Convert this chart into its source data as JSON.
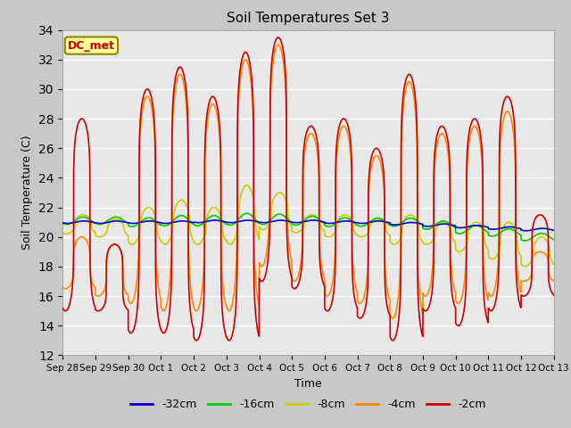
{
  "title": "Soil Temperatures Set 3",
  "xlabel": "Time",
  "ylabel": "Soil Temperature (C)",
  "ylim": [
    12,
    34
  ],
  "yticks": [
    12,
    14,
    16,
    18,
    20,
    22,
    24,
    26,
    28,
    30,
    32,
    34
  ],
  "fig_bg_color": "#c8c8c8",
  "plot_bg_color": "#e8e8e8",
  "annotation_text": "DC_met",
  "annotation_box_color": "#ffff99",
  "annotation_border_color": "#888800",
  "annotation_text_color": "#cc0000",
  "series_colors": {
    "-32cm": "#0000cc",
    "-16cm": "#00cc00",
    "-8cm": "#cccc00",
    "-4cm": "#ff8800",
    "-2cm": "#cc0000"
  },
  "legend_labels": [
    "-32cm",
    "-16cm",
    "-8cm",
    "-4cm",
    "-2cm"
  ],
  "x_tick_labels": [
    "Sep 28",
    "Sep 29",
    "Sep 30",
    "Oct 1",
    "Oct 2",
    "Oct 3",
    "Oct 4",
    "Oct 5",
    "Oct 6",
    "Oct 7",
    "Oct 8",
    "Oct 9",
    "Oct 10",
    "Oct 11",
    "Oct 12",
    "Oct 13"
  ],
  "x_tick_positions": [
    0,
    1,
    2,
    3,
    4,
    5,
    6,
    7,
    8,
    9,
    10,
    11,
    12,
    13,
    14,
    15
  ],
  "peaks_2cm": [
    28.0,
    19.5,
    30.0,
    31.5,
    29.5,
    32.5,
    33.5,
    27.5,
    28.0,
    26.0,
    31.0,
    27.5,
    28.0,
    29.5,
    21.5
  ],
  "troughs_2cm": [
    15.0,
    15.0,
    13.5,
    13.5,
    13.0,
    13.0,
    17.0,
    16.5,
    15.0,
    14.5,
    13.0,
    15.0,
    14.0,
    15.0,
    16.0
  ],
  "peaks_4cm": [
    20.0,
    19.5,
    29.5,
    31.0,
    29.0,
    32.0,
    33.0,
    27.0,
    27.5,
    25.5,
    30.5,
    27.0,
    27.5,
    28.5,
    19.0
  ],
  "troughs_4cm": [
    16.5,
    16.0,
    15.5,
    15.0,
    15.0,
    15.0,
    18.0,
    17.0,
    16.0,
    15.5,
    14.5,
    16.0,
    15.5,
    16.0,
    17.0
  ],
  "peaks_8cm": [
    21.5,
    21.2,
    22.0,
    22.5,
    22.0,
    23.5,
    23.0,
    21.5,
    21.5,
    21.2,
    21.5,
    21.0,
    21.0,
    21.0,
    20.0
  ],
  "troughs_8cm": [
    20.2,
    20.0,
    19.5,
    19.5,
    19.5,
    19.5,
    20.5,
    20.3,
    20.0,
    20.0,
    19.5,
    19.5,
    19.0,
    18.5,
    18.0
  ],
  "base_16cm": [
    21.1,
    21.1,
    21.0,
    21.1,
    21.1,
    21.2,
    21.2,
    21.1,
    21.0,
    21.0,
    21.0,
    20.8,
    20.5,
    20.3,
    20.0
  ],
  "amp_16cm": [
    0.25,
    0.25,
    0.3,
    0.35,
    0.35,
    0.4,
    0.35,
    0.3,
    0.3,
    0.28,
    0.28,
    0.28,
    0.28,
    0.25,
    0.25
  ],
  "base_32cm": [
    21.0,
    21.0,
    21.0,
    21.0,
    21.05,
    21.05,
    21.05,
    21.05,
    21.0,
    21.0,
    20.9,
    20.8,
    20.7,
    20.6,
    20.5
  ],
  "peak_hour_2cm": 0.58,
  "peak_hour_8cm": 0.62,
  "trough_hour": 0.25,
  "spike_sharpness": 8.0
}
